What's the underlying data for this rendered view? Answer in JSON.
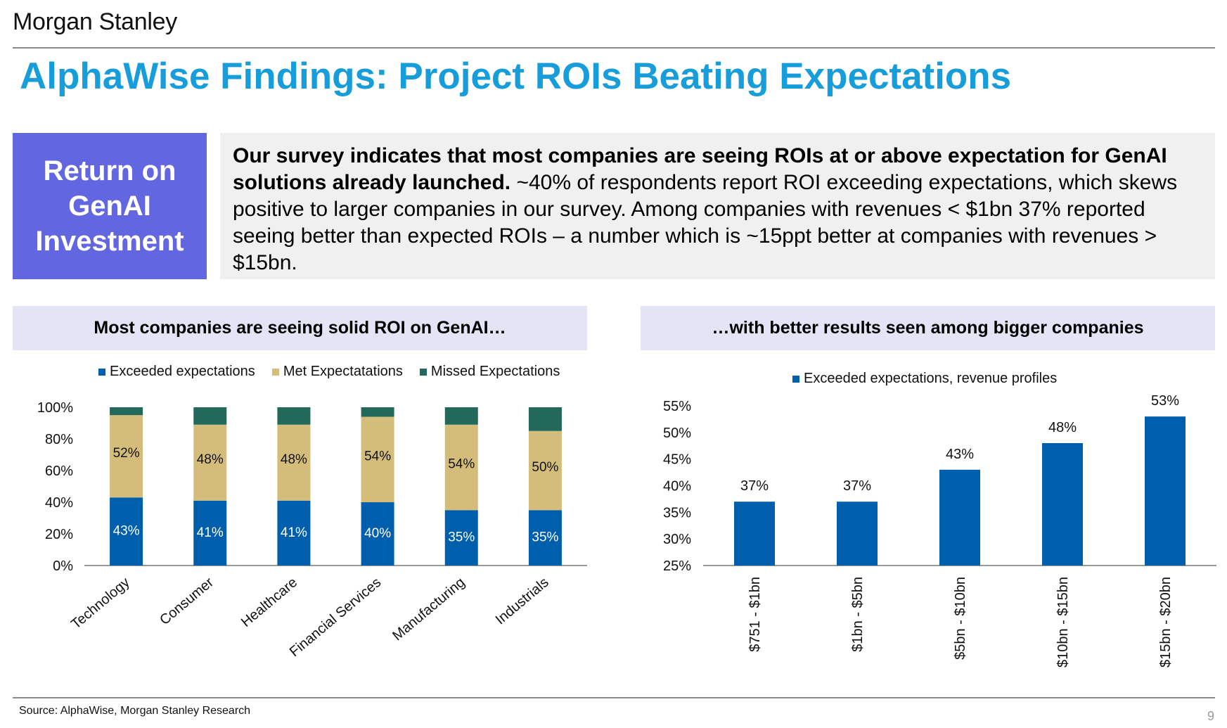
{
  "header": {
    "brand": "Morgan Stanley",
    "title": "AlphaWise Findings: Project ROIs Beating Expectations"
  },
  "summary": {
    "label": "Return on GenAI Investment",
    "bold_text": "Our survey indicates that most companies are seeing ROIs at or above expectation for GenAI solutions already launched.",
    "body_text": " ~40% of respondents report ROI exceeding expectations, which skews positive to larger companies in our survey. Among companies with revenues < $1bn 37% reported seeing better than expected ROIs – a number which is ~15ppt better at companies with revenues > $15bn."
  },
  "colors": {
    "title": "#189ddb",
    "label_box": "#6366e1",
    "exceeded": "#005fad",
    "met": "#d4bd7b",
    "missed": "#22695c"
  },
  "footer": {
    "source": "Source: AlphaWise, Morgan Stanley Research",
    "page": "9"
  },
  "chart_data": [
    {
      "type": "bar",
      "stacked": true,
      "title": "Most companies are seeing solid ROI on GenAI…",
      "categories": [
        "Technology",
        "Consumer",
        "Healthcare",
        "Financial Services",
        "Manufacturing",
        "Industrials"
      ],
      "series": [
        {
          "name": "Exceeded expectations",
          "values": [
            43,
            41,
            41,
            40,
            35,
            35
          ],
          "labels": [
            "43%",
            "41%",
            "41%",
            "40%",
            "35%",
            "35%"
          ]
        },
        {
          "name": "Met Expectatations",
          "values": [
            52,
            48,
            48,
            54,
            54,
            50
          ],
          "labels": [
            "52%",
            "48%",
            "48%",
            "54%",
            "54%",
            "50%"
          ]
        },
        {
          "name": "Missed Expectations",
          "values": [
            5,
            11,
            11,
            6,
            11,
            15
          ]
        }
      ],
      "yticks": [
        "0%",
        "20%",
        "40%",
        "60%",
        "80%",
        "100%"
      ],
      "ylim": [
        0,
        100
      ],
      "legend_position": "top"
    },
    {
      "type": "bar",
      "title": "…with better results seen among bigger companies",
      "categories": [
        "$751 - $1bn",
        "$1bn - $5bn",
        "$5bn - $10bn",
        "$10bn - $15bn",
        "$15bn - $20bn"
      ],
      "series": [
        {
          "name": "Exceeded expectations, revenue profiles",
          "values": [
            37,
            37,
            43,
            48,
            53
          ],
          "labels": [
            "37%",
            "37%",
            "43%",
            "48%",
            "53%"
          ]
        }
      ],
      "yticks": [
        "25%",
        "30%",
        "35%",
        "40%",
        "45%",
        "50%",
        "55%"
      ],
      "ylim": [
        25,
        55
      ],
      "legend_position": "top"
    }
  ]
}
